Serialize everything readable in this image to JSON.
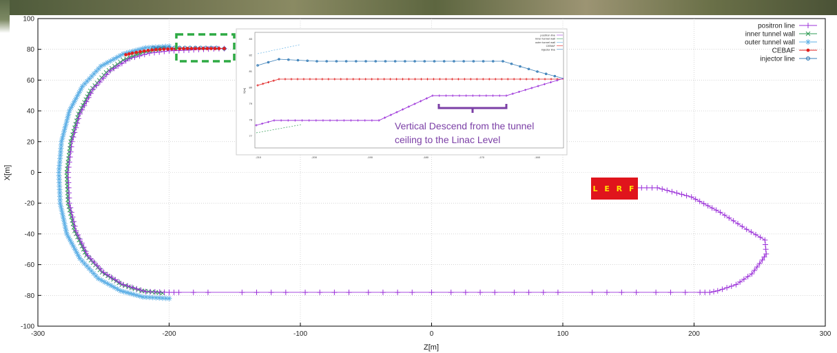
{
  "chart_data": {
    "type": "line",
    "xlabel": "Z[m]",
    "ylabel": "X[m]",
    "xlim": [
      -300,
      300
    ],
    "ylim": [
      -100,
      100
    ],
    "xticks": [
      "-300",
      "-200",
      "-100",
      "0",
      "100",
      "200",
      "300"
    ],
    "yticks": [
      "100",
      "80",
      "60",
      "40",
      "20",
      "0",
      "-20",
      "-40",
      "-60",
      "-80",
      "-100"
    ],
    "grid": true,
    "legend_position": "top-right",
    "series": [
      {
        "name": "positron line",
        "color": "#9b30d9",
        "marker": "plus",
        "points": [
          [
            -158,
            80.5
          ],
          [
            -170,
            80.2
          ],
          [
            -185,
            79.5
          ],
          [
            -200,
            79
          ],
          [
            -215,
            77.5
          ],
          [
            -230,
            74
          ],
          [
            -245,
            66
          ],
          [
            -258,
            54
          ],
          [
            -268,
            38
          ],
          [
            -274,
            20
          ],
          [
            -277,
            0
          ],
          [
            -276,
            -20
          ],
          [
            -271,
            -38
          ],
          [
            -262,
            -54
          ],
          [
            -250,
            -65
          ],
          [
            -235,
            -73
          ],
          [
            -218,
            -77.5
          ],
          [
            -200,
            -78
          ],
          [
            -100,
            -78
          ],
          [
            0,
            -78
          ],
          [
            100,
            -78
          ],
          [
            212,
            -78
          ],
          [
            218,
            -77
          ],
          [
            232,
            -73
          ],
          [
            244,
            -66
          ],
          [
            252,
            -57
          ],
          [
            255,
            -53
          ],
          [
            254,
            -44
          ],
          [
            240,
            -37
          ],
          [
            220,
            -26
          ],
          [
            198,
            -16
          ],
          [
            172,
            -10
          ],
          [
            152,
            -10
          ]
        ]
      },
      {
        "name": "inner tunnel wall",
        "color": "#2e9b54",
        "marker": "x",
        "points": [
          [
            -205,
            80.5
          ],
          [
            -220,
            78
          ],
          [
            -235,
            73
          ],
          [
            -248,
            65
          ],
          [
            -260,
            53
          ],
          [
            -269,
            38
          ],
          [
            -275,
            20
          ],
          [
            -278,
            0
          ],
          [
            -277,
            -20
          ],
          [
            -272,
            -38
          ],
          [
            -263,
            -54
          ],
          [
            -251,
            -65
          ],
          [
            -236,
            -73
          ],
          [
            -221,
            -77
          ],
          [
            -205,
            -78.5
          ]
        ]
      },
      {
        "name": "outer tunnel wall",
        "color": "#5fb0e6",
        "marker": "star",
        "points": [
          [
            -200,
            82
          ],
          [
            -218,
            81
          ],
          [
            -235,
            77
          ],
          [
            -252,
            69
          ],
          [
            -266,
            56
          ],
          [
            -276,
            40
          ],
          [
            -282,
            20
          ],
          [
            -284,
            0
          ],
          [
            -283,
            -20
          ],
          [
            -278,
            -40
          ],
          [
            -268,
            -56
          ],
          [
            -254,
            -69
          ],
          [
            -237,
            -77
          ],
          [
            -220,
            -81
          ],
          [
            -200,
            -82
          ]
        ]
      },
      {
        "name": "CEBAF",
        "color": "#e02020",
        "marker": "circle",
        "points": [
          [
            -233,
            76.5
          ],
          [
            -228,
            77.5
          ],
          [
            -222,
            78.5
          ],
          [
            -216,
            79.3
          ],
          [
            -210,
            79.8
          ],
          [
            -204,
            80.1
          ],
          [
            -198,
            80.3
          ],
          [
            -192,
            80.4
          ],
          [
            -186,
            80.5
          ],
          [
            -180,
            80.5
          ],
          [
            -174,
            80.5
          ],
          [
            -168,
            80.5
          ],
          [
            -162,
            80.5
          ],
          [
            -158,
            80.5
          ]
        ]
      },
      {
        "name": "injector line",
        "color": "#3a7fb8",
        "marker": "open-circle",
        "points": [
          [
            -212,
            81
          ],
          [
            -204,
            81
          ],
          [
            -196,
            81
          ],
          [
            -188,
            81
          ],
          [
            -180,
            81
          ],
          [
            -172,
            81
          ],
          [
            -164,
            81
          ],
          [
            -158,
            80.5
          ]
        ]
      }
    ]
  },
  "inset": {
    "legend": [
      "positron line",
      "inner tunnel wall",
      "outer tunnel wall",
      "CEBAF",
      "injector line"
    ],
    "xticks": [
      "-210",
      "-200",
      "-190",
      "-180",
      "-170",
      "-160"
    ],
    "yticks": [
      "83",
      "82",
      "81",
      "80",
      "79",
      "78",
      "77"
    ],
    "ylabel": "X[m]"
  },
  "annotations": {
    "callout_line1": "Vertical Descend from the tunnel",
    "callout_line2": "ceiling to the Linac Level",
    "lerf_label": "L E R F"
  },
  "colors": {
    "highlight_box": "#2eaa44",
    "callout": "#7b3fa6",
    "lerf_bg": "#e0141c",
    "lerf_text": "#ffe400"
  }
}
